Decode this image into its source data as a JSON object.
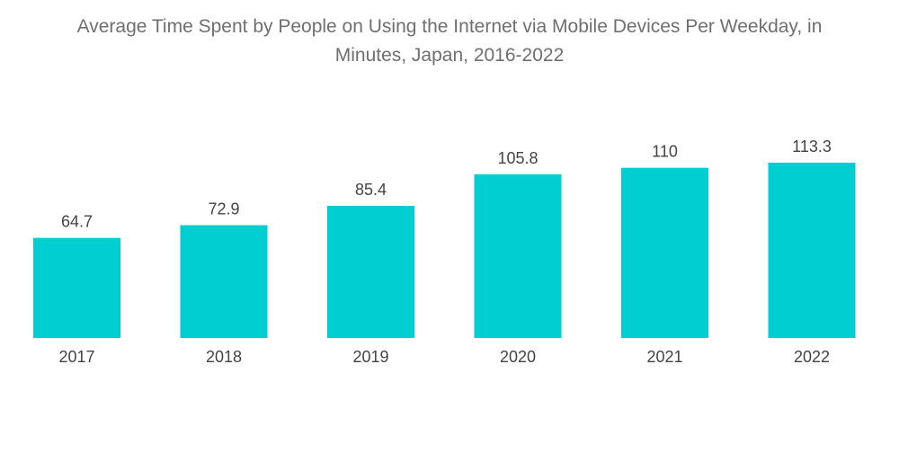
{
  "chart_data": {
    "type": "bar",
    "title_lines": [
      "Average Time Spent by People on Using the Internet via Mobile Devices Per Weekday, in",
      "Minutes, Japan, 2016-2022"
    ],
    "categories": [
      "2017",
      "2018",
      "2019",
      "2020",
      "2021",
      "2022"
    ],
    "values": [
      64.7,
      72.9,
      85.4,
      105.8,
      110,
      113.3
    ],
    "value_labels": [
      "64.7",
      "72.9",
      "85.4",
      "105.8",
      "110",
      "113.3"
    ],
    "xlabel": "",
    "ylabel": "",
    "ylim": [
      0,
      113.3
    ],
    "grid": false,
    "legend": "none",
    "bar_color": "#00ced1"
  }
}
